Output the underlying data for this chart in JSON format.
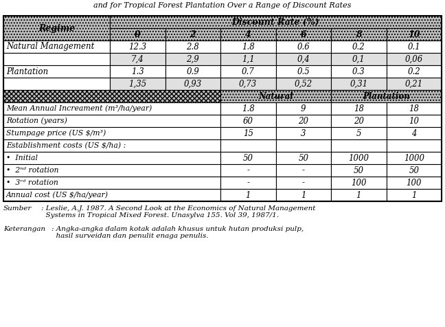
{
  "subtitle": "and for Tropical Forest Plantation Over a Range of Discount Rates",
  "bcr_rows": [
    [
      "Natural Management",
      "12.3",
      "2.8",
      "1.8",
      "0.6",
      "0.2",
      "0.1"
    ],
    [
      "",
      "7,4",
      "2,9",
      "1,1",
      "0,4",
      "0,1",
      "0,06"
    ],
    [
      "Plantation",
      "1.3",
      "0.9",
      "0.7",
      "0.5",
      "0.3",
      "0.2"
    ],
    [
      "",
      "1,35",
      "0,93",
      "0,73",
      "0,52",
      "0,31",
      "0,21"
    ]
  ],
  "param_rows": [
    [
      "Mean Annual Increament (m³/ha/year)",
      "1.8",
      "9",
      "18",
      "18"
    ],
    [
      "Rotation (years)",
      "60",
      "20",
      "20",
      "10"
    ],
    [
      "Stumpage price (US $/m³)",
      "15",
      "3",
      "5",
      "4"
    ],
    [
      "Establishment costs (US $/ha) :",
      "",
      "",
      "",
      ""
    ],
    [
      "•  Initial",
      "50",
      "50",
      "1000",
      "1000"
    ],
    [
      "•  2ⁿᵈ rotation",
      "-",
      "-",
      "50",
      "50"
    ],
    [
      "•  3ʳᵈ rotation",
      "-",
      "-",
      "100",
      "100"
    ],
    [
      "Annual cost (US $/ha/year)",
      "1",
      "1",
      "1",
      "1"
    ]
  ],
  "sumber_label": "Sumber",
  "sumber_text": ": Leslie, A.J. 1987. A Second Look at the Economics of Natural Management\n  Systems in Tropical Mixed Forest. Unasylva 155. Vol 39, 1987/1.",
  "keterangan_label": "Keterangan",
  "keterangan_text": ": Angka-angka dalam kotak adalah khusus untuk hutan produksi pulp,\n  hasil surveidan dan penulit enaga penulis.",
  "bg_header": "#c0c0c0",
  "bg_light": "#e0e0e0",
  "bg_white": "#ffffff"
}
